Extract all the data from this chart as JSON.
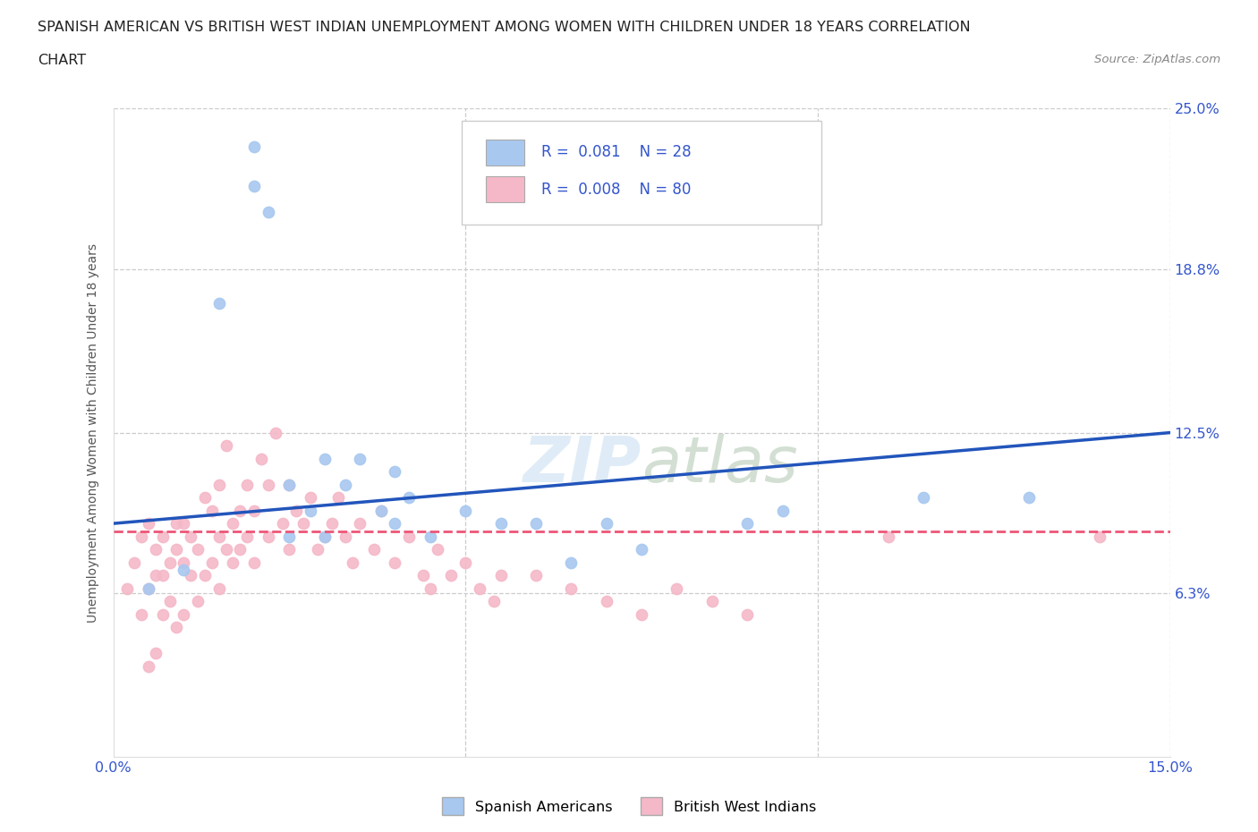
{
  "title_line1": "SPANISH AMERICAN VS BRITISH WEST INDIAN UNEMPLOYMENT AMONG WOMEN WITH CHILDREN UNDER 18 YEARS CORRELATION",
  "title_line2": "CHART",
  "source": "Source: ZipAtlas.com",
  "ylabel": "Unemployment Among Women with Children Under 18 years",
  "xlim": [
    0.0,
    0.15
  ],
  "ylim": [
    0.0,
    0.25
  ],
  "color_blue": "#a8c8f0",
  "color_pink": "#f5b8c8",
  "color_blue_line": "#2255bb",
  "color_pink_line": "#ee5577",
  "color_text_blue": "#3355cc",
  "color_grid": "#cccccc",
  "blue_scatter_x": [
    0.005,
    0.01,
    0.015,
    0.02,
    0.02,
    0.022,
    0.025,
    0.025,
    0.028,
    0.03,
    0.03,
    0.033,
    0.035,
    0.038,
    0.04,
    0.04,
    0.042,
    0.045,
    0.05,
    0.055,
    0.06,
    0.065,
    0.07,
    0.075,
    0.09,
    0.095,
    0.115,
    0.13
  ],
  "blue_scatter_y": [
    0.065,
    0.072,
    0.175,
    0.22,
    0.235,
    0.21,
    0.105,
    0.085,
    0.095,
    0.115,
    0.085,
    0.105,
    0.115,
    0.095,
    0.11,
    0.09,
    0.1,
    0.085,
    0.095,
    0.09,
    0.09,
    0.075,
    0.09,
    0.08,
    0.09,
    0.095,
    0.1,
    0.1
  ],
  "pink_scatter_x": [
    0.002,
    0.003,
    0.004,
    0.004,
    0.005,
    0.005,
    0.005,
    0.006,
    0.006,
    0.006,
    0.007,
    0.007,
    0.007,
    0.008,
    0.008,
    0.009,
    0.009,
    0.009,
    0.01,
    0.01,
    0.01,
    0.011,
    0.011,
    0.012,
    0.012,
    0.013,
    0.013,
    0.014,
    0.014,
    0.015,
    0.015,
    0.015,
    0.016,
    0.016,
    0.017,
    0.017,
    0.018,
    0.018,
    0.019,
    0.019,
    0.02,
    0.02,
    0.021,
    0.022,
    0.022,
    0.023,
    0.024,
    0.025,
    0.025,
    0.026,
    0.027,
    0.028,
    0.029,
    0.03,
    0.031,
    0.032,
    0.033,
    0.034,
    0.035,
    0.037,
    0.038,
    0.04,
    0.042,
    0.044,
    0.045,
    0.046,
    0.048,
    0.05,
    0.052,
    0.054,
    0.055,
    0.06,
    0.065,
    0.07,
    0.075,
    0.08,
    0.085,
    0.09,
    0.11,
    0.14
  ],
  "pink_scatter_y": [
    0.065,
    0.075,
    0.055,
    0.085,
    0.035,
    0.065,
    0.09,
    0.04,
    0.07,
    0.08,
    0.055,
    0.07,
    0.085,
    0.06,
    0.075,
    0.05,
    0.08,
    0.09,
    0.055,
    0.075,
    0.09,
    0.07,
    0.085,
    0.06,
    0.08,
    0.07,
    0.1,
    0.075,
    0.095,
    0.065,
    0.085,
    0.105,
    0.08,
    0.12,
    0.075,
    0.09,
    0.08,
    0.095,
    0.085,
    0.105,
    0.075,
    0.095,
    0.115,
    0.085,
    0.105,
    0.125,
    0.09,
    0.08,
    0.105,
    0.095,
    0.09,
    0.1,
    0.08,
    0.085,
    0.09,
    0.1,
    0.085,
    0.075,
    0.09,
    0.08,
    0.095,
    0.075,
    0.085,
    0.07,
    0.065,
    0.08,
    0.07,
    0.075,
    0.065,
    0.06,
    0.07,
    0.07,
    0.065,
    0.06,
    0.055,
    0.065,
    0.06,
    0.055,
    0.085,
    0.085
  ],
  "legend_label1": "Spanish Americans",
  "legend_label2": "British West Indians",
  "blue_trend_x": [
    0.0,
    0.15
  ],
  "blue_trend_y": [
    0.09,
    0.125
  ],
  "pink_trend_x": [
    0.0,
    0.15
  ],
  "pink_trend_y": [
    0.087,
    0.087
  ]
}
